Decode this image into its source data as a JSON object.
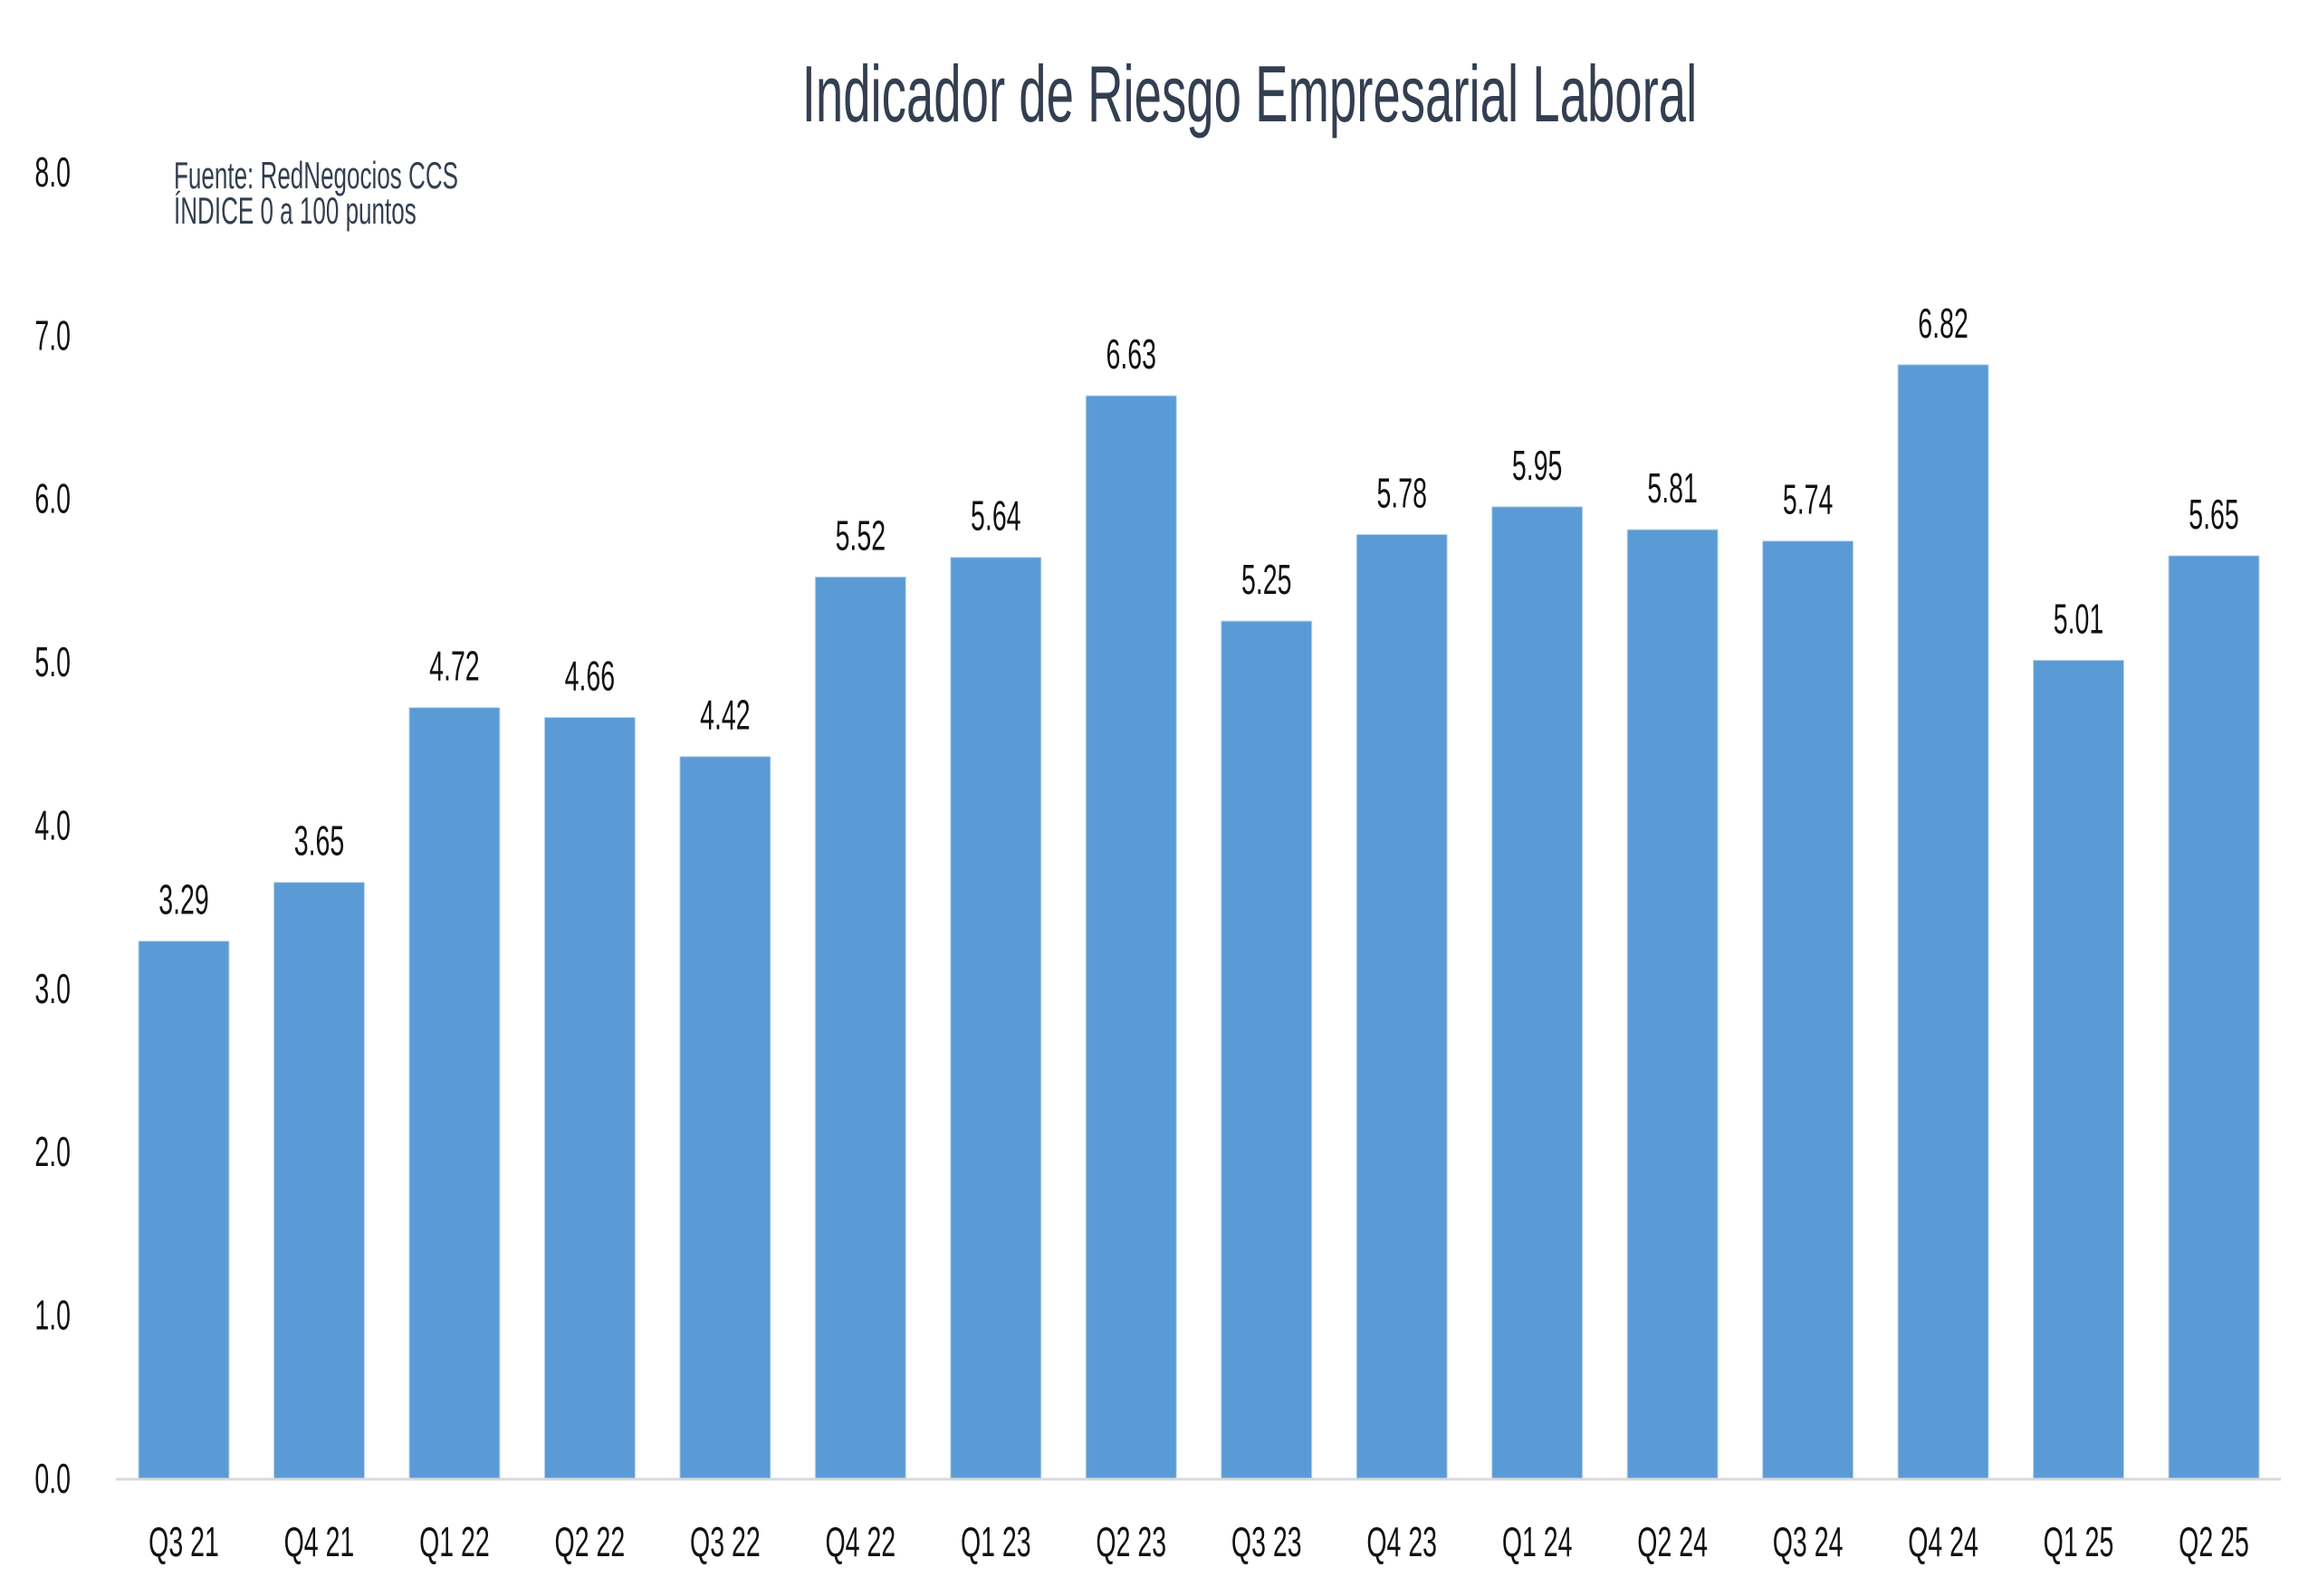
{
  "chart_data": {
    "type": "bar",
    "title": "Indicador de Riesgo Empresarial Laboral",
    "annotations": [
      "Fuente: RedNegocios CCS",
      "ÍNDICE 0 a 100  puntos"
    ],
    "xlabel": "",
    "ylabel": "",
    "ylim": [
      0,
      8
    ],
    "yticks": [
      0,
      1,
      2,
      3,
      4,
      5,
      6,
      7,
      8
    ],
    "ytick_labels": [
      "0.0",
      "1.0",
      "2.0",
      "3.0",
      "4.0",
      "5.0",
      "6.0",
      "7.0",
      "8.0"
    ],
    "grid": false,
    "legend": "none",
    "categories": [
      "Q3 21",
      "Q4 21",
      "Q1 22",
      "Q2 22",
      "Q3 22",
      "Q4 22",
      "Q1 23",
      "Q2 23",
      "Q3 23",
      "Q4 23",
      "Q1 24",
      "Q2 24",
      "Q3 24",
      "Q4 24",
      "Q1 25",
      "Q2 25"
    ],
    "values": [
      3.29,
      3.65,
      4.72,
      4.66,
      4.42,
      5.52,
      5.64,
      6.63,
      5.25,
      5.78,
      5.95,
      5.81,
      5.74,
      6.82,
      5.01,
      5.65
    ],
    "data_labels": [
      "3.29",
      "3.65",
      "4.72",
      "4.66",
      "4.42",
      "5.52",
      "5.64",
      "6.63",
      "5.25",
      "5.78",
      "5.95",
      "5.81",
      "5.74",
      "6.82",
      "5.01",
      "5.65"
    ],
    "colors": {
      "bar": "#5b9bd5",
      "title": "#333f50",
      "text": "#111111",
      "axis": "#d9d9d9"
    }
  }
}
